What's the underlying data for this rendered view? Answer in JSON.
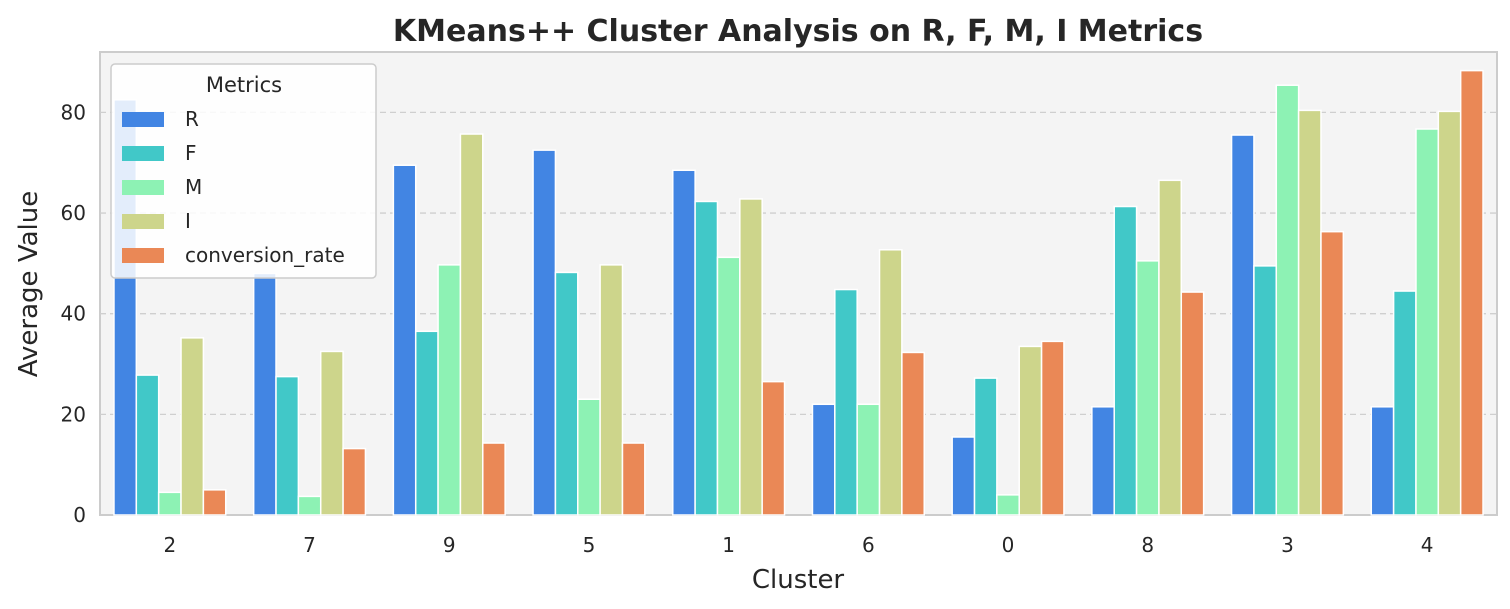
{
  "chart_data": {
    "type": "bar",
    "title": "KMeans++ Cluster Analysis on R, F, M, I Metrics",
    "xlabel": "Cluster",
    "ylabel": "Average Value",
    "ylim": [
      0,
      92
    ],
    "yticks": [
      0,
      20,
      40,
      60,
      80
    ],
    "grid": true,
    "legend": {
      "title": "Metrics",
      "placement": "top-left"
    },
    "categories": [
      "2",
      "7",
      "9",
      "5",
      "1",
      "6",
      "0",
      "8",
      "3",
      "4"
    ],
    "series": [
      {
        "name": "R",
        "color": "#4285e3",
        "values": [
          82.5,
          48.0,
          69.5,
          72.5,
          68.5,
          22.0,
          15.5,
          21.5,
          75.5,
          21.5
        ]
      },
      {
        "name": "F",
        "color": "#41c8c8",
        "values": [
          27.8,
          27.5,
          36.5,
          48.2,
          62.3,
          44.8,
          27.2,
          61.3,
          49.5,
          44.5
        ]
      },
      {
        "name": "M",
        "color": "#8df2b4",
        "values": [
          4.5,
          3.7,
          49.7,
          23.0,
          51.2,
          22.0,
          4.0,
          50.5,
          85.4,
          76.7
        ]
      },
      {
        "name": "I",
        "color": "#cdd58b",
        "values": [
          35.2,
          32.5,
          75.7,
          49.7,
          62.8,
          52.7,
          33.5,
          66.5,
          80.4,
          80.2
        ]
      },
      {
        "name": "conversion_rate",
        "color": "#ea8856",
        "values": [
          5.0,
          13.2,
          14.3,
          14.3,
          26.5,
          32.3,
          34.5,
          44.3,
          56.3,
          88.3
        ]
      }
    ]
  }
}
